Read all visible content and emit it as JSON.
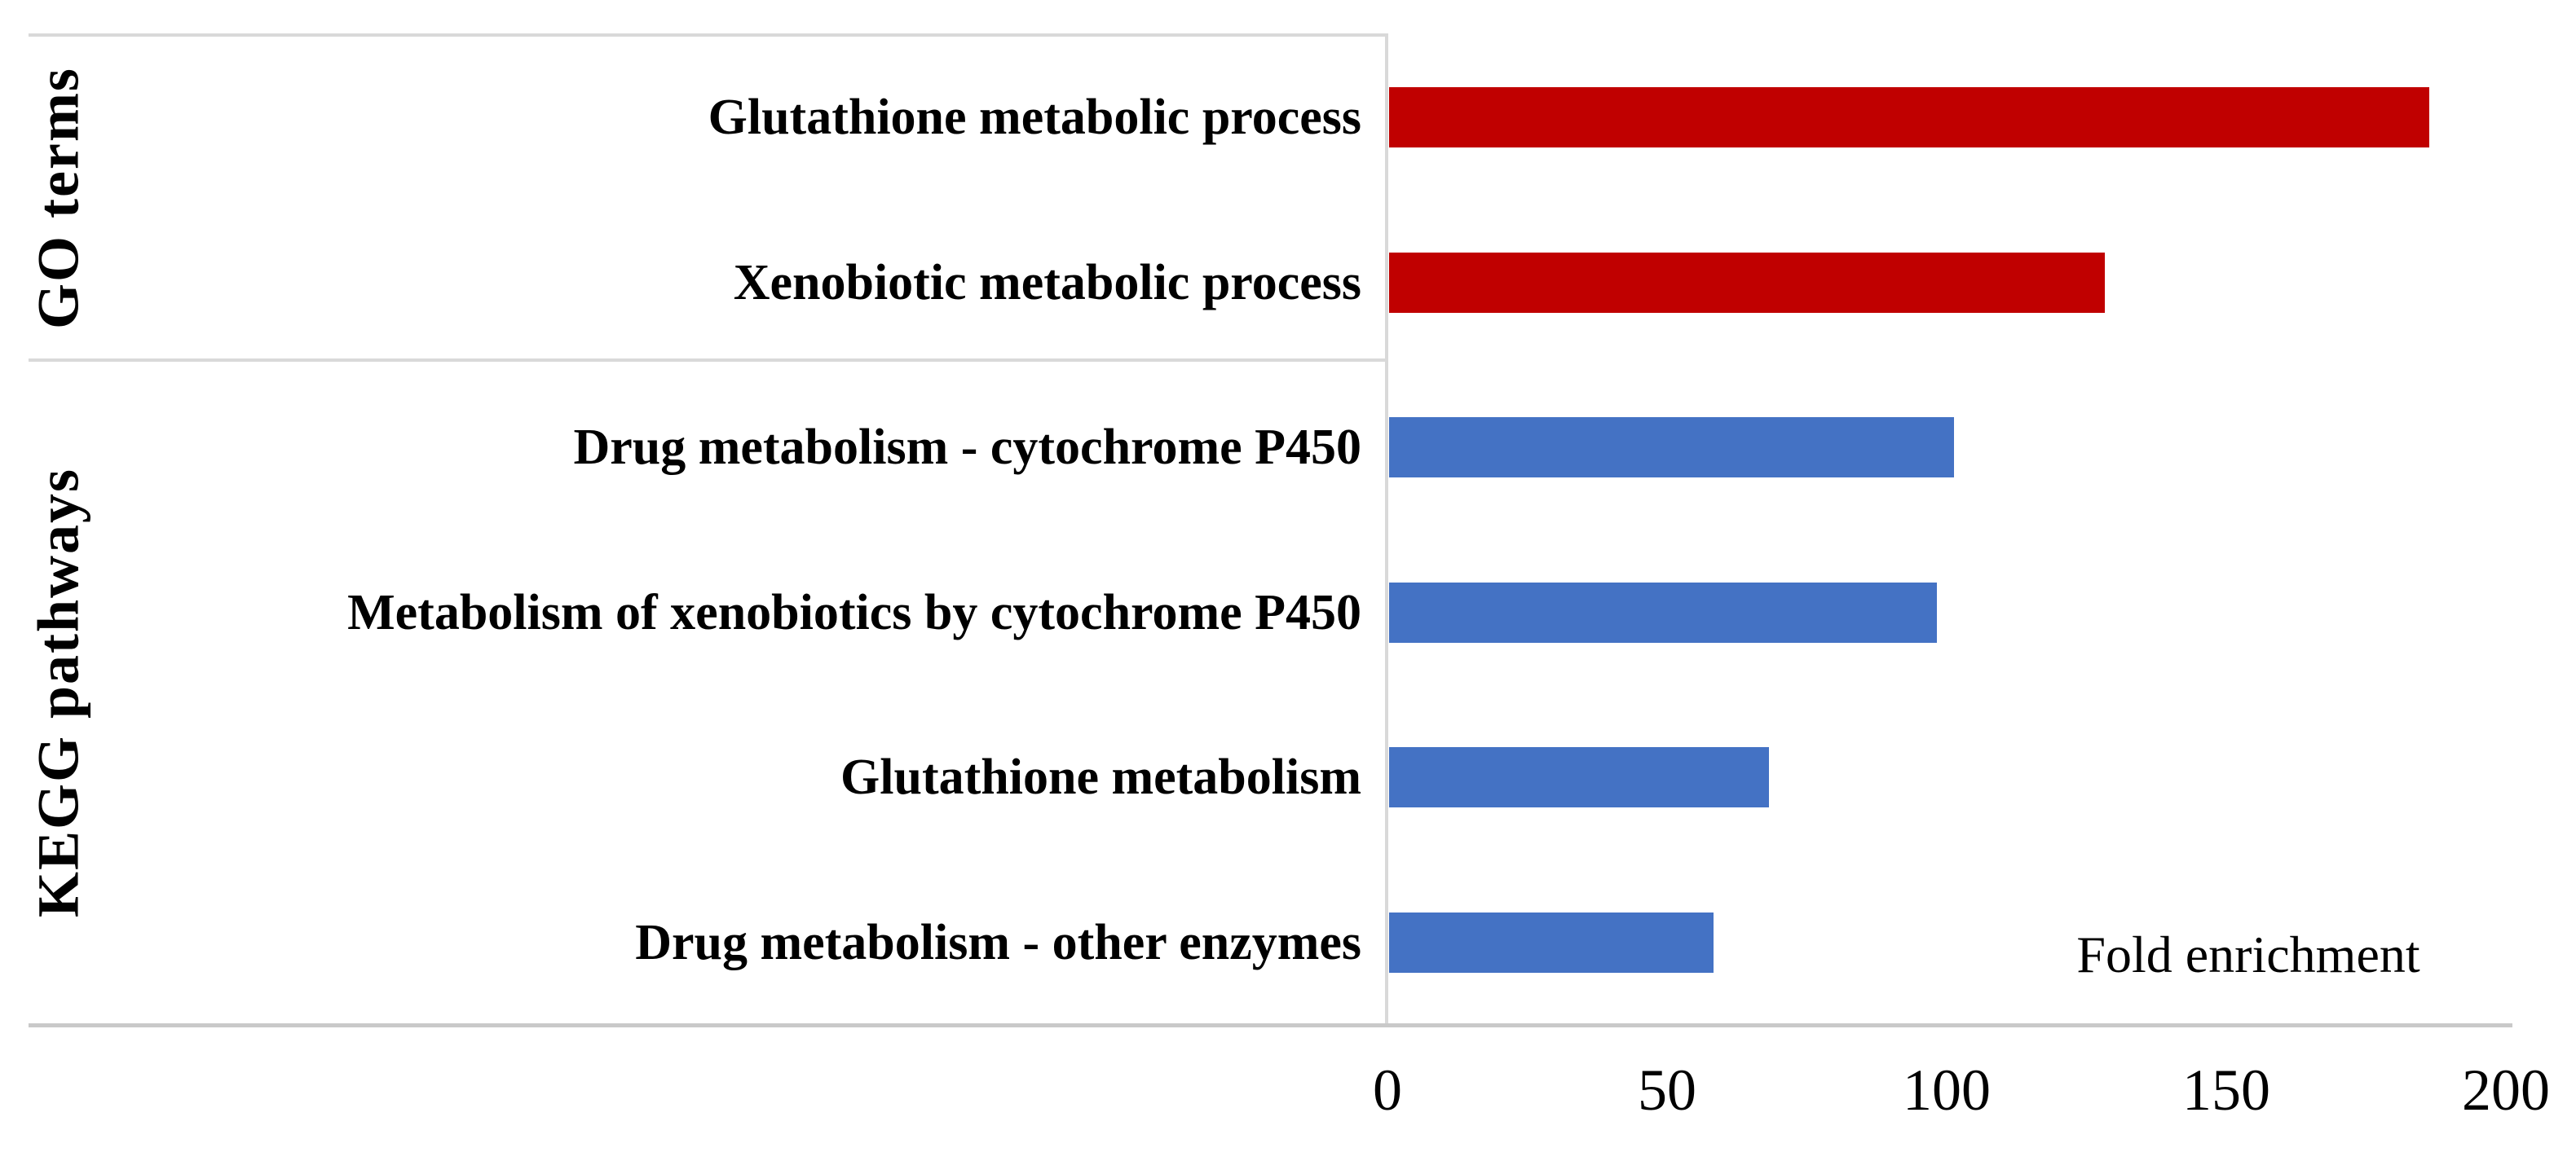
{
  "chart_data": {
    "type": "bar",
    "orientation": "horizontal",
    "xlabel": "Fold enrichment",
    "xlim": [
      0,
      200
    ],
    "x_ticks": [
      "0",
      "50",
      "100",
      "150",
      "200"
    ],
    "grid": "off",
    "legend": "none",
    "groups": [
      {
        "label": "GO terms",
        "row_indices": [
          0,
          1
        ],
        "color": "#C00000"
      },
      {
        "label": "KEGG pathways",
        "row_indices": [
          2,
          3,
          4,
          5
        ],
        "color": "#4472C4"
      }
    ],
    "categories": [
      "Glutathione metabolic process",
      "Xenobiotic metabolic process",
      "Drug metabolism - cytochrome P450",
      "Metabolism of xenobiotics by cytochrome P450",
      "Glutathione metabolism",
      "Drug metabolism - other enzymes"
    ],
    "series": [
      {
        "name": "Fold enrichment",
        "values": [
          186,
          128,
          101,
          98,
          68,
          58
        ]
      }
    ],
    "bar_colors": [
      "#C00000",
      "#C00000",
      "#4472C4",
      "#4472C4",
      "#4472C4",
      "#4472C4"
    ],
    "axis_line_color": "#d9d9d9",
    "text_color": "#000000"
  }
}
